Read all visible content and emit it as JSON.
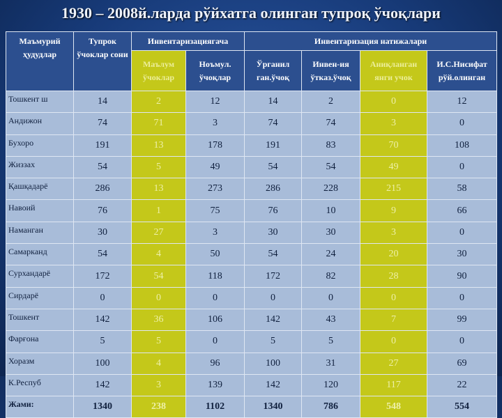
{
  "title": "1930 – 2008й.ларда рўйхатга олинган тупроқ ўчоқлари",
  "table": {
    "headers": {
      "region": "Маъмурий ҳудудлар",
      "count": "Тупрок ўчоклар сони",
      "groups": [
        "Инвентаризациягача",
        "Инвентаризация натижалари"
      ],
      "sub": [
        "Маълум ўчоклар",
        "Ноъмул. ўчоқлар",
        "Ўрганил ган.ўчоқ",
        "Инвен-ия ўтказ.ўчоқ",
        "Аниқланган янги учок",
        "И.С.Нисифат рўй.олинган"
      ]
    },
    "rows": [
      {
        "region": "Тошкент ш",
        "values": [
          14,
          2,
          12,
          14,
          2,
          0,
          12
        ]
      },
      {
        "region": "Андижон",
        "values": [
          74,
          71,
          3,
          74,
          74,
          3,
          0
        ]
      },
      {
        "region": "Бухоро",
        "values": [
          191,
          13,
          178,
          191,
          83,
          70,
          108
        ]
      },
      {
        "region": "Жиззах",
        "values": [
          54,
          5,
          49,
          54,
          54,
          49,
          0
        ]
      },
      {
        "region": "Қашқадарё",
        "values": [
          286,
          13,
          273,
          286,
          228,
          215,
          58
        ]
      },
      {
        "region": "Навоий",
        "values": [
          76,
          1,
          75,
          76,
          10,
          9,
          66
        ]
      },
      {
        "region": "Наманган",
        "values": [
          30,
          27,
          3,
          30,
          30,
          3,
          0
        ]
      },
      {
        "region": "Самарканд",
        "values": [
          54,
          4,
          50,
          54,
          24,
          20,
          30
        ]
      },
      {
        "region": "Сурхандарё",
        "values": [
          172,
          54,
          118,
          172,
          82,
          28,
          90
        ]
      },
      {
        "region": "Сирдарё",
        "values": [
          0,
          0,
          0,
          0,
          0,
          0,
          0
        ]
      },
      {
        "region": "Тошкент",
        "values": [
          142,
          36,
          106,
          142,
          43,
          7,
          99
        ]
      },
      {
        "region": "Фарғона",
        "values": [
          5,
          5,
          0,
          5,
          5,
          0,
          0
        ]
      },
      {
        "region": "Хоразм",
        "values": [
          100,
          4,
          96,
          100,
          31,
          27,
          69
        ]
      },
      {
        "region": "К.Респуб",
        "values": [
          142,
          3,
          139,
          142,
          120,
          117,
          22
        ]
      },
      {
        "region": "Жами:",
        "values": [
          1340,
          238,
          1102,
          1340,
          786,
          548,
          554
        ]
      }
    ]
  }
}
